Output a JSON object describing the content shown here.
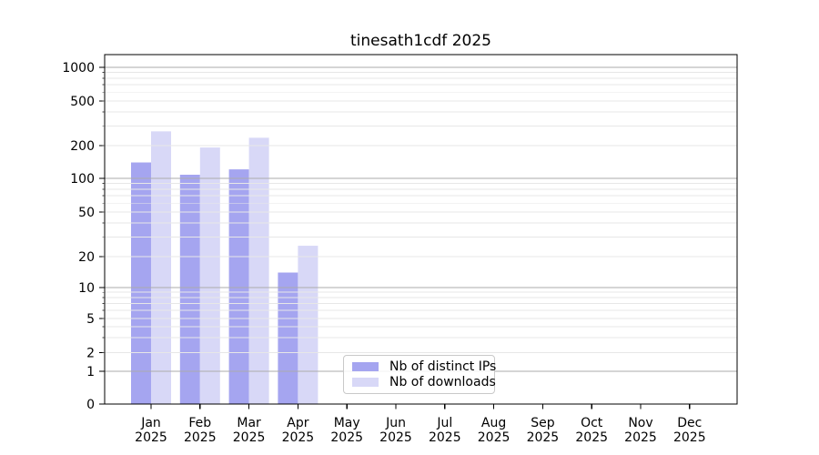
{
  "chart_data": {
    "type": "bar",
    "title": "tinesath1cdf 2025",
    "yscale": "symlog",
    "grid": true,
    "legend_position": "inside lower-center-left",
    "ylim": [
      0,
      1310
    ],
    "y_ticks": [
      0,
      1,
      2,
      5,
      10,
      20,
      50,
      100,
      200,
      500,
      1000
    ],
    "categories": [
      "Jan",
      "Feb",
      "Mar",
      "Apr",
      "May",
      "Jun",
      "Jul",
      "Aug",
      "Sep",
      "Oct",
      "Nov",
      "Dec"
    ],
    "x_tick_second_line": "2025",
    "series": [
      {
        "name": "Nb of distinct IPs",
        "color": "#a5a5f0",
        "values": [
          140,
          108,
          121,
          14,
          0,
          0,
          0,
          0,
          0,
          0,
          0,
          0
        ]
      },
      {
        "name": "Nb of downloads",
        "color": "#d8d8f7",
        "values": [
          268,
          192,
          235,
          25,
          0,
          0,
          0,
          0,
          0,
          0,
          0,
          0
        ]
      }
    ],
    "colors": {
      "major_grid": "#ababab",
      "minor_grid": "#e7e7e7",
      "axis": "#000000",
      "text": "#000000"
    }
  }
}
